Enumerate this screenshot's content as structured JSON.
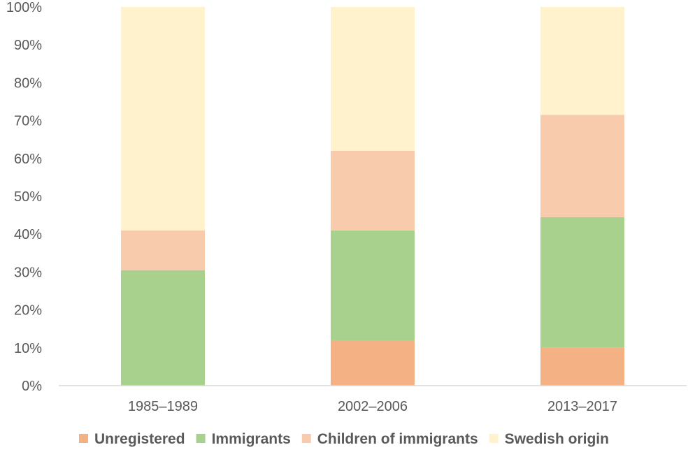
{
  "chart_data": {
    "type": "bar",
    "stacked": true,
    "percent_stacked": true,
    "categories": [
      "1985–1989",
      "2002–2006",
      "2013–2017"
    ],
    "series": [
      {
        "name": "Unregistered",
        "values": [
          0,
          12,
          10
        ],
        "color": "#f4b183"
      },
      {
        "name": "Immigrants",
        "values": [
          30.5,
          29,
          34.5
        ],
        "color": "#a9d18e"
      },
      {
        "name": "Children of immigrants",
        "values": [
          10.5,
          21,
          27
        ],
        "color": "#f8cbad"
      },
      {
        "name": "Swedish origin",
        "values": [
          59,
          38,
          28.5
        ],
        "color": "#fff2cc"
      }
    ],
    "ylim": [
      0,
      100
    ],
    "yticks": [
      "0%",
      "10%",
      "20%",
      "30%",
      "40%",
      "50%",
      "60%",
      "70%",
      "80%",
      "90%",
      "100%"
    ],
    "title": "",
    "xlabel": "",
    "ylabel": "",
    "grid": false,
    "legend_position": "bottom"
  }
}
